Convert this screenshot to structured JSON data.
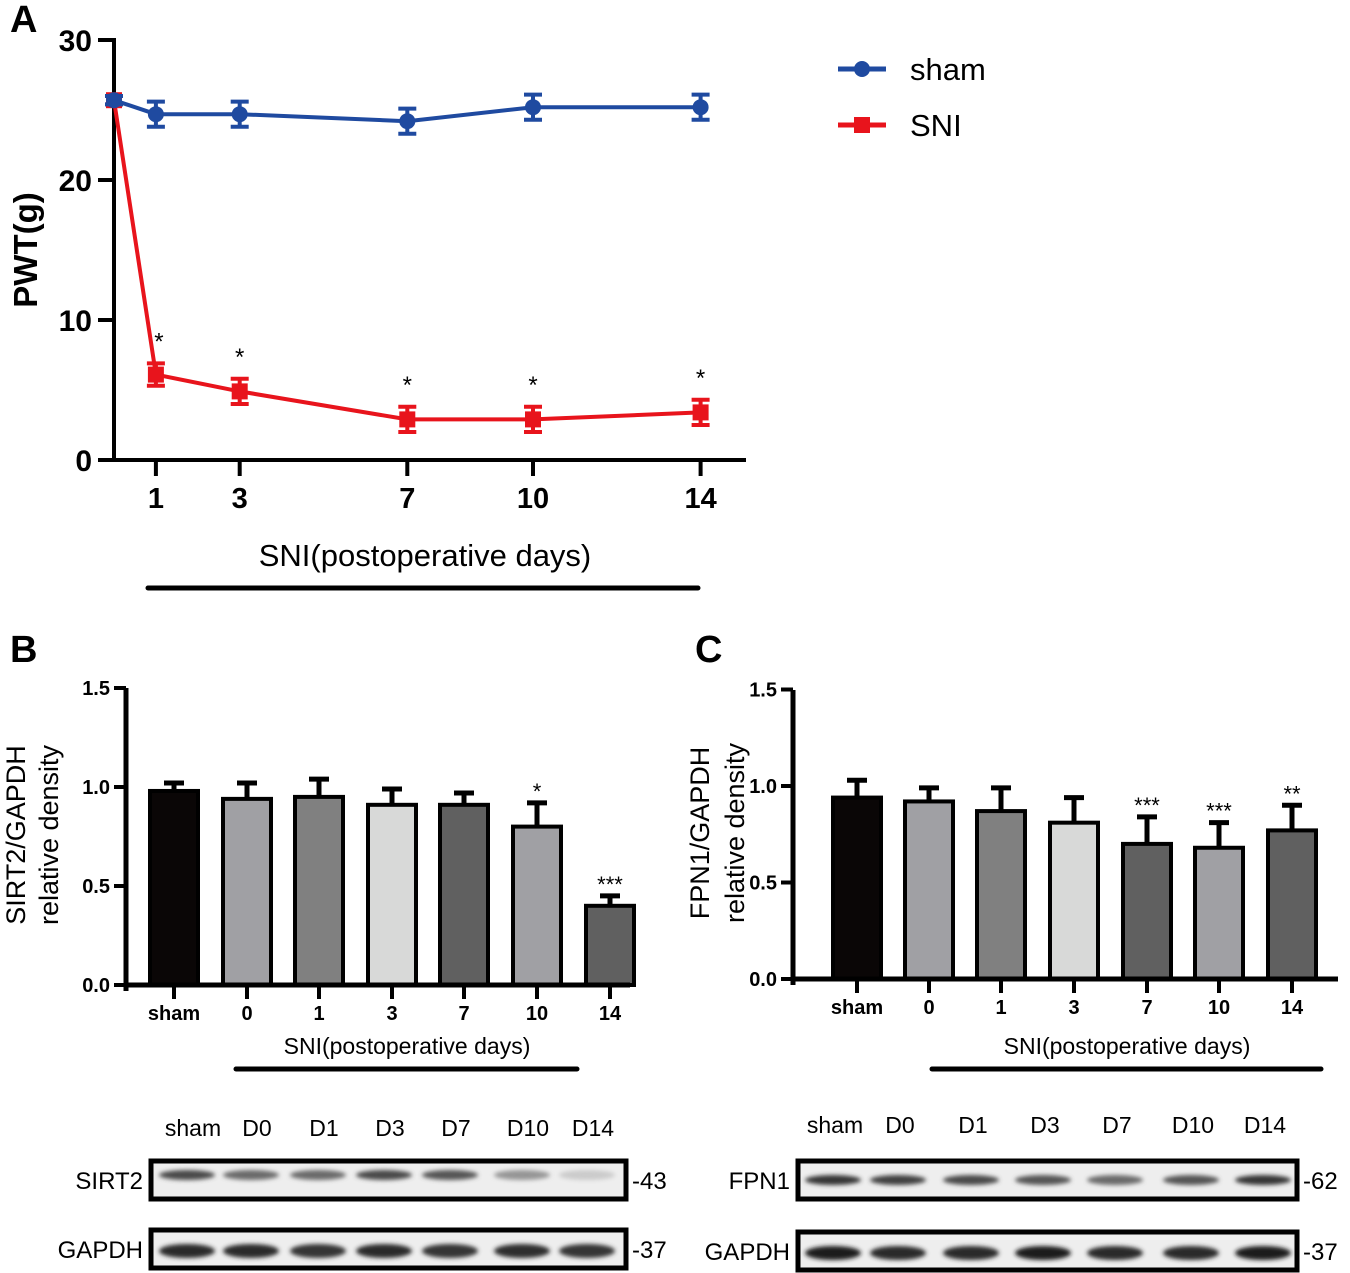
{
  "panel_labels": [
    "A",
    "B",
    "C"
  ],
  "chart_data": [
    {
      "type": "line",
      "panel": "A",
      "title": "",
      "xlabel": "SNI(postoperative days)",
      "ylabel": "PWT(g)",
      "x": [
        0,
        1,
        3,
        7,
        10,
        14
      ],
      "x_tick_labels": [
        "1",
        "3",
        "7",
        "10",
        "14"
      ],
      "y_ticks": [
        "0",
        "10",
        "20",
        "30"
      ],
      "ylim": [
        0,
        30
      ],
      "legend_position": "top-right",
      "series": [
        {
          "name": "sham",
          "color": "#1f4aa0",
          "marker": "circle",
          "values": [
            25.7,
            24.7,
            24.7,
            24.2,
            25.2,
            25.2
          ],
          "errors": [
            0.3,
            0.9,
            0.9,
            0.9,
            0.9,
            0.9
          ],
          "annotations": [
            "",
            "",
            "",
            "",
            "",
            ""
          ]
        },
        {
          "name": "SNI",
          "color": "#e8141c",
          "marker": "square",
          "values": [
            25.7,
            6.1,
            4.9,
            2.9,
            2.9,
            3.4
          ],
          "errors": [
            0.3,
            0.8,
            0.9,
            0.9,
            0.9,
            0.9
          ],
          "annotations": [
            "",
            "*",
            "*",
            "*",
            "*",
            "*"
          ]
        }
      ],
      "grid": false
    },
    {
      "type": "bar",
      "panel": "B",
      "xlabel": "SNI(postoperative days)",
      "ylabel": [
        "SIRT2/GAPDH",
        "relative density"
      ],
      "categories": [
        "sham",
        "0",
        "1",
        "3",
        "7",
        "10",
        "14"
      ],
      "values": [
        0.98,
        0.94,
        0.95,
        0.91,
        0.91,
        0.8,
        0.4
      ],
      "errors": [
        0.04,
        0.08,
        0.09,
        0.08,
        0.06,
        0.12,
        0.05
      ],
      "annotations": [
        "",
        "",
        "",
        "",
        "",
        "*",
        "***"
      ],
      "colors": [
        "#0a0606",
        "#a0a0a4",
        "#808080",
        "#d8d9d8",
        "#606060",
        "#a0a0a4",
        "#606060"
      ],
      "y_ticks": [
        "0.0",
        "0.5",
        "1.0",
        "1.5"
      ],
      "ylim": [
        0,
        1.5
      ],
      "grid": false
    },
    {
      "type": "bar",
      "panel": "C",
      "xlabel": "SNI(postoperative days)",
      "ylabel": [
        "FPN1/GAPDH",
        "relative density"
      ],
      "categories": [
        "sham",
        "0",
        "1",
        "3",
        "7",
        "10",
        "14"
      ],
      "values": [
        0.94,
        0.92,
        0.87,
        0.81,
        0.7,
        0.68,
        0.77
      ],
      "errors": [
        0.09,
        0.07,
        0.12,
        0.13,
        0.14,
        0.13,
        0.13
      ],
      "annotations": [
        "",
        "",
        "",
        "",
        "***",
        "***",
        "**"
      ],
      "colors": [
        "#0a0606",
        "#a0a0a4",
        "#808080",
        "#d8d9d8",
        "#606060",
        "#a0a0a4",
        "#606060"
      ],
      "y_ticks": [
        "0.0",
        "0.5",
        "1.0",
        "1.5"
      ],
      "ylim": [
        0,
        1.5
      ],
      "grid": false
    }
  ],
  "blots": [
    {
      "panel": "B",
      "lanes": [
        "sham",
        "D0",
        "D1",
        "D3",
        "D7",
        "D10",
        "D14"
      ],
      "rows": [
        {
          "protein": "SIRT2",
          "kda": "-43",
          "band_intensity": [
            0.75,
            0.6,
            0.6,
            0.75,
            0.7,
            0.4,
            0.15
          ]
        },
        {
          "protein": "GAPDH",
          "kda": "-37",
          "band_intensity": [
            0.9,
            0.9,
            0.85,
            0.9,
            0.85,
            0.88,
            0.85
          ]
        }
      ]
    },
    {
      "panel": "C",
      "lanes": [
        "sham",
        "D0",
        "D1",
        "D3",
        "D7",
        "D10",
        "D14"
      ],
      "rows": [
        {
          "protein": "FPN1",
          "kda": "-62",
          "band_intensity": [
            0.85,
            0.8,
            0.75,
            0.7,
            0.6,
            0.7,
            0.85
          ]
        },
        {
          "protein": "GAPDH",
          "kda": "-37",
          "band_intensity": [
            0.95,
            0.9,
            0.9,
            0.95,
            0.9,
            0.9,
            0.95
          ]
        }
      ]
    }
  ]
}
